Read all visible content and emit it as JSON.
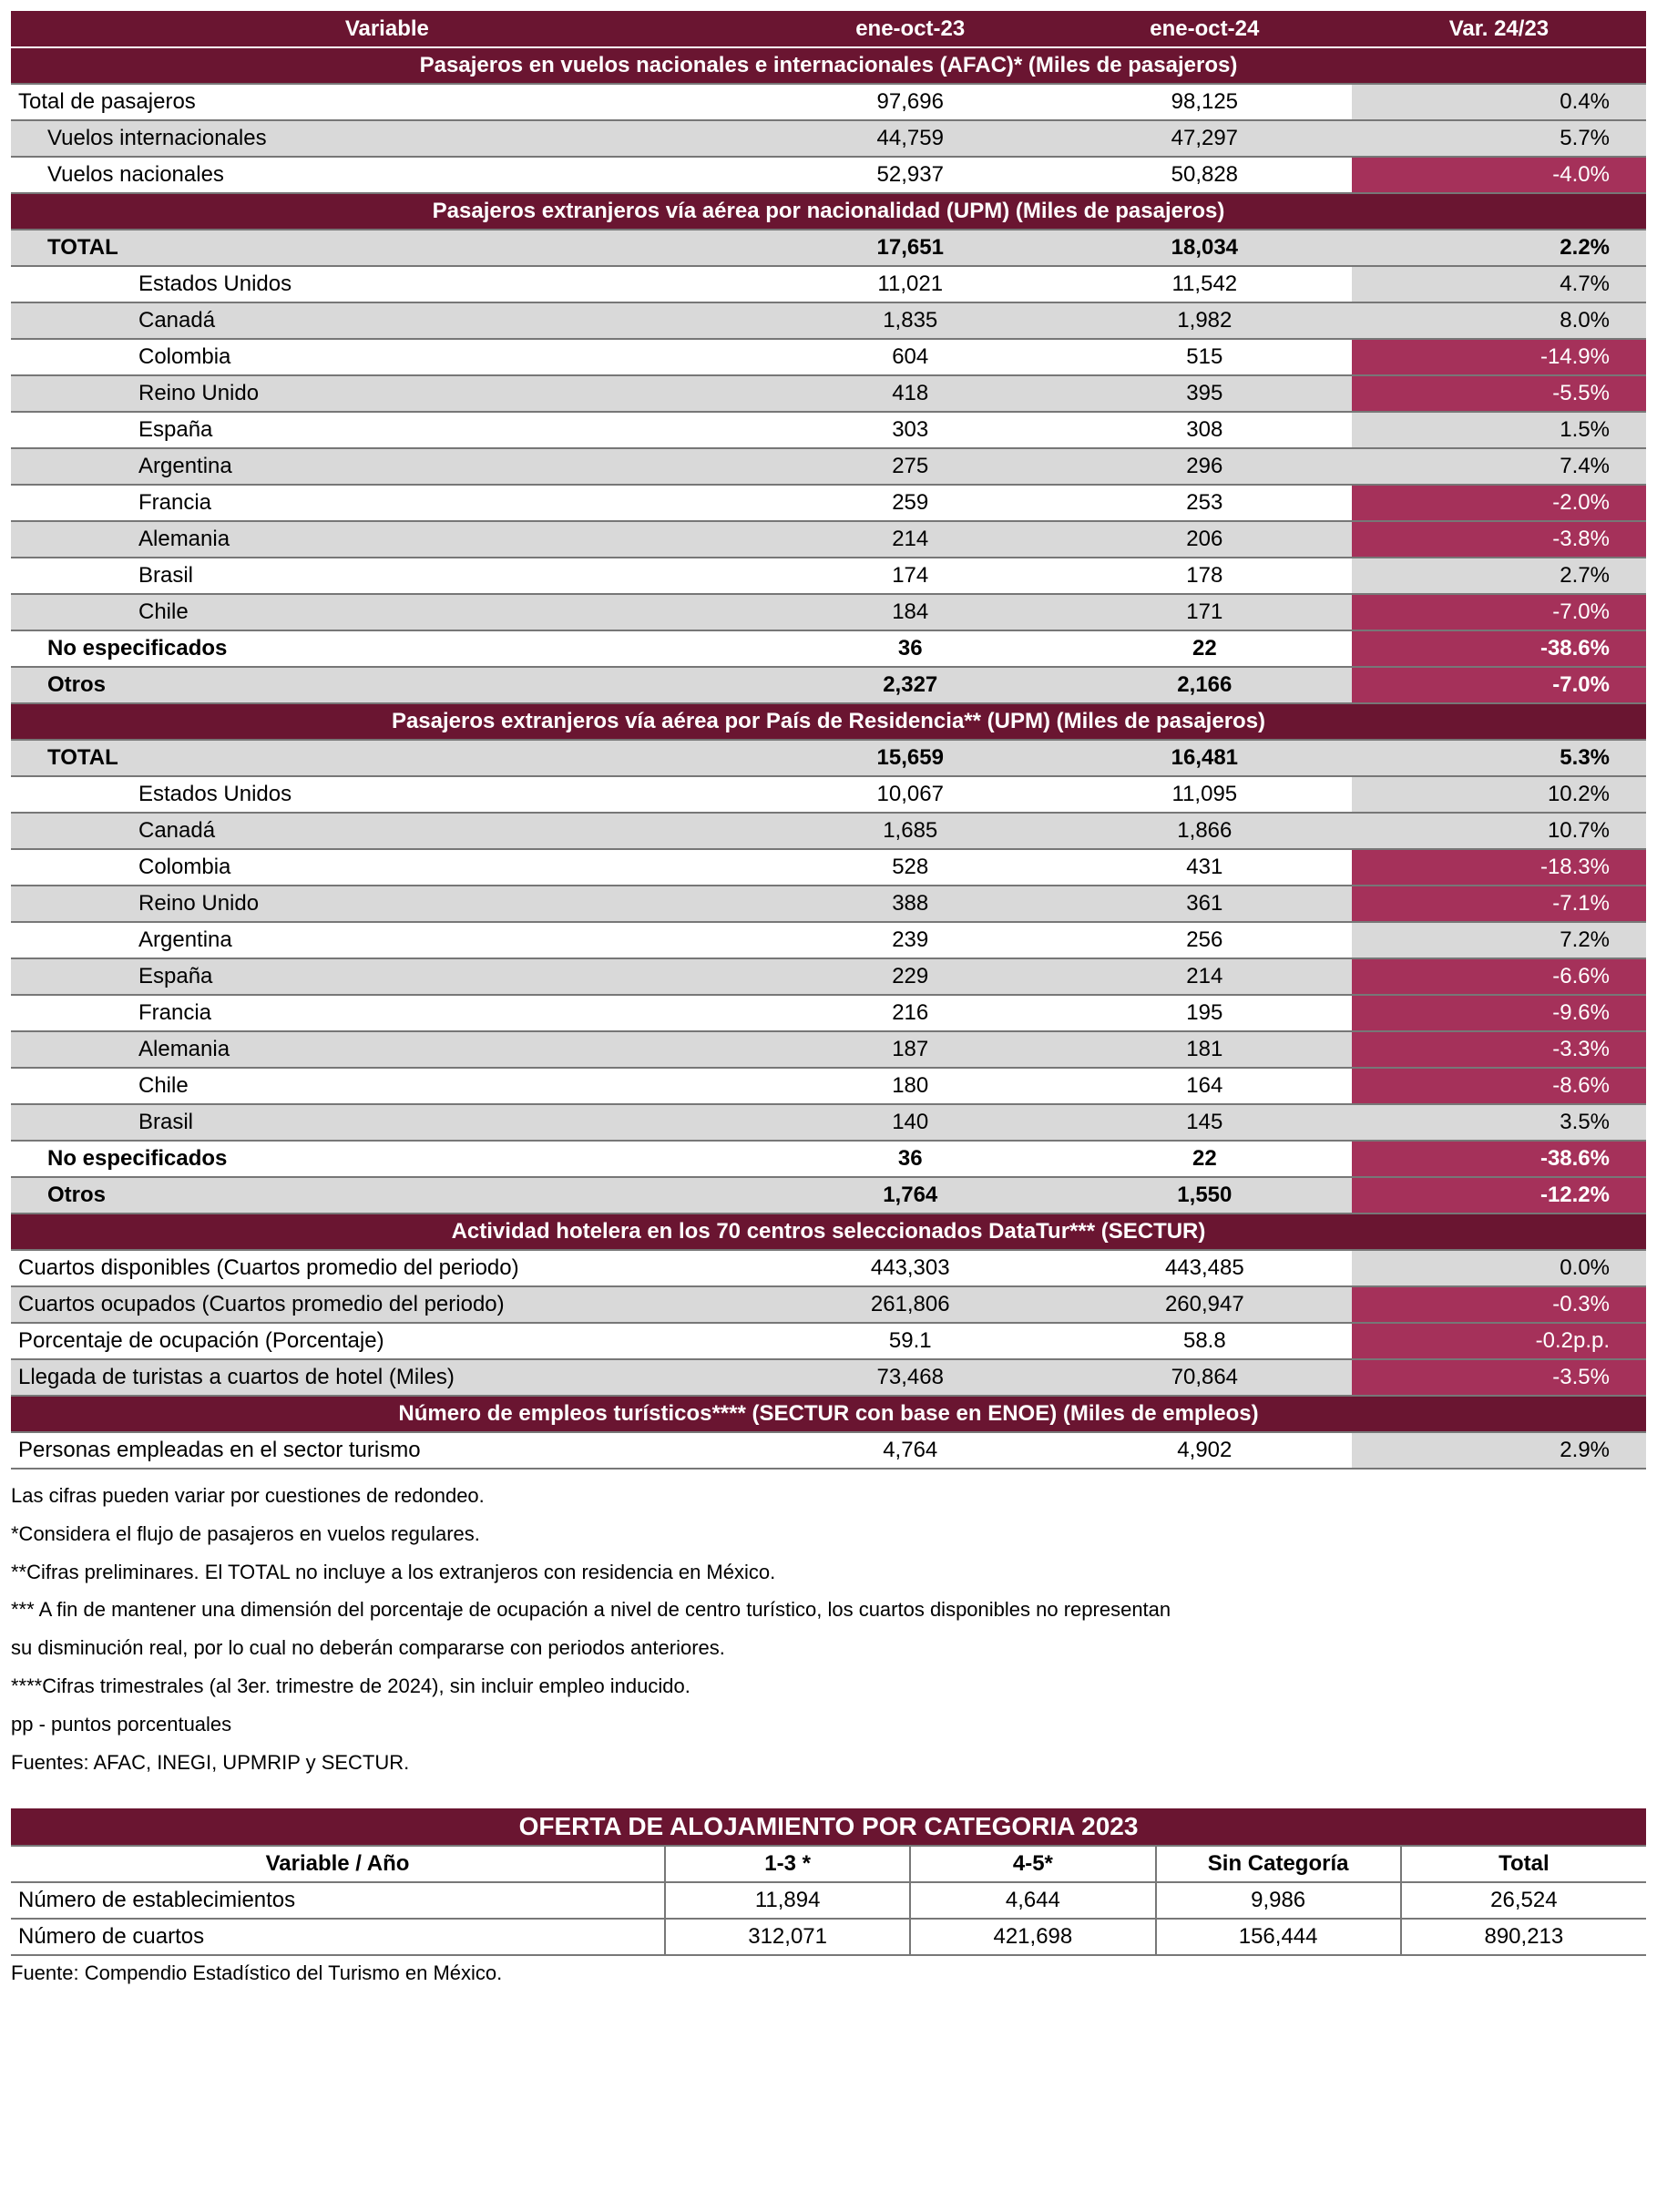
{
  "colors": {
    "header_bg": "#6a1531",
    "header_fg": "#ffffff",
    "pos_bg": "#d9d9d9",
    "neg_bg": "#a5315a",
    "neg_fg": "#ffffff",
    "shade_bg": "#d9d9d9",
    "border": "#777777"
  },
  "main": {
    "head": {
      "c0": "Variable",
      "c1": "ene-oct-23",
      "c2": "ene-oct-24",
      "c3": "Var. 24/23"
    },
    "sections": [
      {
        "title": "Pasajeros en vuelos nacionales e internacionales (AFAC)* (Miles de pasajeros)",
        "rows": [
          {
            "label": "Total de pasajeros",
            "indent": 0,
            "a": "97,696",
            "b": "98,125",
            "v": "0.4%",
            "neg": false,
            "bold": false,
            "shade": false
          },
          {
            "label": "Vuelos internacionales",
            "indent": 1,
            "a": "44,759",
            "b": "47,297",
            "v": "5.7%",
            "neg": false,
            "bold": false,
            "shade": true
          },
          {
            "label": "Vuelos nacionales",
            "indent": 1,
            "a": "52,937",
            "b": "50,828",
            "v": "-4.0%",
            "neg": true,
            "bold": false,
            "shade": false
          }
        ]
      },
      {
        "title": "Pasajeros extranjeros vía aérea por nacionalidad (UPM) (Miles de pasajeros)",
        "rows": [
          {
            "label": "TOTAL",
            "indent": 1,
            "a": "17,651",
            "b": "18,034",
            "v": "2.2%",
            "neg": false,
            "bold": true,
            "shade": true
          },
          {
            "label": "Estados Unidos",
            "indent": 3,
            "a": "11,021",
            "b": "11,542",
            "v": "4.7%",
            "neg": false,
            "bold": false,
            "shade": false
          },
          {
            "label": "Canadá",
            "indent": 3,
            "a": "1,835",
            "b": "1,982",
            "v": "8.0%",
            "neg": false,
            "bold": false,
            "shade": true
          },
          {
            "label": "Colombia",
            "indent": 3,
            "a": "604",
            "b": "515",
            "v": "-14.9%",
            "neg": true,
            "bold": false,
            "shade": false
          },
          {
            "label": "Reino Unido",
            "indent": 3,
            "a": "418",
            "b": "395",
            "v": "-5.5%",
            "neg": true,
            "bold": false,
            "shade": true
          },
          {
            "label": "España",
            "indent": 3,
            "a": "303",
            "b": "308",
            "v": "1.5%",
            "neg": false,
            "bold": false,
            "shade": false
          },
          {
            "label": "Argentina",
            "indent": 3,
            "a": "275",
            "b": "296",
            "v": "7.4%",
            "neg": false,
            "bold": false,
            "shade": true
          },
          {
            "label": "Francia",
            "indent": 3,
            "a": "259",
            "b": "253",
            "v": "-2.0%",
            "neg": true,
            "bold": false,
            "shade": false
          },
          {
            "label": "Alemania",
            "indent": 3,
            "a": "214",
            "b": "206",
            "v": "-3.8%",
            "neg": true,
            "bold": false,
            "shade": true
          },
          {
            "label": "Brasil",
            "indent": 3,
            "a": "174",
            "b": "178",
            "v": "2.7%",
            "neg": false,
            "bold": false,
            "shade": false
          },
          {
            "label": "Chile",
            "indent": 3,
            "a": "184",
            "b": "171",
            "v": "-7.0%",
            "neg": true,
            "bold": false,
            "shade": true
          },
          {
            "label": "No especificados",
            "indent": 1,
            "a": "36",
            "b": "22",
            "v": "-38.6%",
            "neg": true,
            "bold": true,
            "shade": false
          },
          {
            "label": "Otros",
            "indent": 1,
            "a": "2,327",
            "b": "2,166",
            "v": "-7.0%",
            "neg": true,
            "bold": true,
            "shade": true
          }
        ]
      },
      {
        "title": "Pasajeros extranjeros vía aérea por País de Residencia** (UPM) (Miles de pasajeros)",
        "rows": [
          {
            "label": "TOTAL",
            "indent": 1,
            "a": "15,659",
            "b": "16,481",
            "v": "5.3%",
            "neg": false,
            "bold": true,
            "shade": true
          },
          {
            "label": "Estados Unidos",
            "indent": 3,
            "a": "10,067",
            "b": "11,095",
            "v": "10.2%",
            "neg": false,
            "bold": false,
            "shade": false
          },
          {
            "label": "Canadá",
            "indent": 3,
            "a": "1,685",
            "b": "1,866",
            "v": "10.7%",
            "neg": false,
            "bold": false,
            "shade": true
          },
          {
            "label": "Colombia",
            "indent": 3,
            "a": "528",
            "b": "431",
            "v": "-18.3%",
            "neg": true,
            "bold": false,
            "shade": false
          },
          {
            "label": "Reino Unido",
            "indent": 3,
            "a": "388",
            "b": "361",
            "v": "-7.1%",
            "neg": true,
            "bold": false,
            "shade": true
          },
          {
            "label": "Argentina",
            "indent": 3,
            "a": "239",
            "b": "256",
            "v": "7.2%",
            "neg": false,
            "bold": false,
            "shade": false
          },
          {
            "label": "España",
            "indent": 3,
            "a": "229",
            "b": "214",
            "v": "-6.6%",
            "neg": true,
            "bold": false,
            "shade": true
          },
          {
            "label": "Francia",
            "indent": 3,
            "a": "216",
            "b": "195",
            "v": "-9.6%",
            "neg": true,
            "bold": false,
            "shade": false
          },
          {
            "label": "Alemania",
            "indent": 3,
            "a": "187",
            "b": "181",
            "v": "-3.3%",
            "neg": true,
            "bold": false,
            "shade": true
          },
          {
            "label": "Chile",
            "indent": 3,
            "a": "180",
            "b": "164",
            "v": "-8.6%",
            "neg": true,
            "bold": false,
            "shade": false
          },
          {
            "label": "Brasil",
            "indent": 3,
            "a": "140",
            "b": "145",
            "v": "3.5%",
            "neg": false,
            "bold": false,
            "shade": true
          },
          {
            "label": "No especificados",
            "indent": 1,
            "a": "36",
            "b": "22",
            "v": "-38.6%",
            "neg": true,
            "bold": true,
            "shade": false
          },
          {
            "label": "Otros",
            "indent": 1,
            "a": "1,764",
            "b": "1,550",
            "v": "-12.2%",
            "neg": true,
            "bold": true,
            "shade": true
          }
        ]
      },
      {
        "title": "Actividad hotelera en los 70 centros seleccionados DataTur*** (SECTUR)",
        "rows": [
          {
            "label": "Cuartos disponibles (Cuartos promedio del periodo)",
            "indent": 0,
            "a": "443,303",
            "b": "443,485",
            "v": "0.0%",
            "neg": false,
            "bold": false,
            "shade": false
          },
          {
            "label": "Cuartos ocupados (Cuartos promedio del periodo)",
            "indent": 0,
            "a": "261,806",
            "b": "260,947",
            "v": "-0.3%",
            "neg": true,
            "bold": false,
            "shade": true
          },
          {
            "label": "Porcentaje de ocupación (Porcentaje)",
            "indent": 0,
            "a": "59.1",
            "b": "58.8",
            "v": "-0.2p.p.",
            "neg": true,
            "bold": false,
            "shade": false
          },
          {
            "label": "Llegada de turistas a cuartos de hotel (Miles)",
            "indent": 0,
            "a": "73,468",
            "b": "70,864",
            "v": "-3.5%",
            "neg": true,
            "bold": false,
            "shade": true
          }
        ]
      },
      {
        "title": "Número de empleos turísticos**** (SECTUR con base en ENOE) (Miles de empleos)",
        "rows": [
          {
            "label": "Personas empleadas en el sector turismo",
            "indent": 0,
            "a": "4,764",
            "b": "4,902",
            "v": "2.9%",
            "neg": false,
            "bold": false,
            "shade": false
          }
        ]
      }
    ]
  },
  "footnotes": [
    "Las cifras pueden variar por cuestiones de redondeo.",
    "*Considera el flujo de pasajeros en vuelos regulares.",
    "**Cifras preliminares. El TOTAL no  incluye a los extranjeros con residencia en México.",
    "*** A fin de mantener una dimensión del porcentaje de ocupación a nivel de centro turístico, los cuartos disponibles no representan",
    "su disminución real, por lo cual no deberán compararse con periodos anteriores.",
    "****Cifras trimestrales (al 3er. trimestre de 2024), sin incluir empleo inducido.",
    "pp - puntos porcentuales",
    "Fuentes: AFAC, INEGI, UPMRIP y SECTUR."
  ],
  "t2": {
    "title": "OFERTA DE ALOJAMIENTO POR CATEGORIA 2023",
    "head": {
      "c0": "Variable / Año",
      "c1": "1-3 *",
      "c2": "4-5*",
      "c3": "Sin Categoría",
      "c4": "Total"
    },
    "rows": [
      {
        "label": "Número de establecimientos",
        "a": "11,894",
        "b": "4,644",
        "c": "9,986",
        "d": "26,524"
      },
      {
        "label": "Número de cuartos",
        "a": "312,071",
        "b": "421,698",
        "c": "156,444",
        "d": "890,213"
      }
    ],
    "source": "Fuente: Compendio Estadístico del Turismo en México."
  }
}
